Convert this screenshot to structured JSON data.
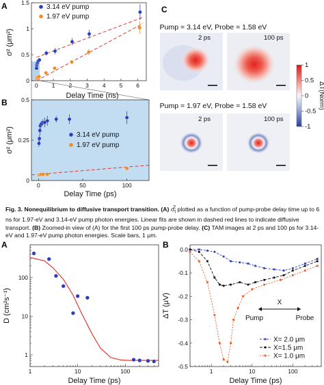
{
  "figure3": {
    "panel_labels": {
      "a": "A",
      "b": "B",
      "c": "C"
    },
    "caption": {
      "title": "Fig. 3. Nonequilibrium to diffusive transport transition.",
      "part_a_label": "(A)",
      "part_a_text_pre": "σ",
      "part_a_sub": "t",
      "part_a_sup": "2",
      "part_a_text": "plotted as a function of pump-probe delay time up to 6 ns for 1.97-eV and 3.14-eV pump photon energies. Linear fits are shown in dashed red lines to indicate diffusive transport.",
      "part_b_label": "(B)",
      "part_b_text": "Zoomed-in view of (A) for the first 100 ps pump-probe delay.",
      "part_c_label": "(C)",
      "part_c_text": "TAM images at 2 ps and 100 ps for 3.14-eV and 1.97-eV pump photon energies. Scale bars, 1 μm."
    },
    "panel_c": {
      "row1_title": "Pump = 3.14 eV, Probe = 1.58 eV",
      "row2_title": "Pump = 1.97 eV, Probe = 1.58 eV",
      "time_2ps": "2 ps",
      "time_100ps": "100 ps",
      "colorbar_label": "ΔT(Norm)",
      "colorbar_ticks": [
        "1",
        "0.5",
        "0",
        "-0.5",
        "-1"
      ],
      "colors": {
        "positive": "#e8302e",
        "negative": "#3b4fa0",
        "zero": "#f2f2f4"
      }
    }
  },
  "figure4": {
    "panel_labels": {
      "a": "A",
      "b": "B"
    },
    "inset_text": {
      "x_label": "X",
      "pump": "Pump",
      "probe": "Probe"
    }
  },
  "chart_data": [
    {
      "id": "fig3a",
      "type": "scatter",
      "xlabel": "Delay Time (ns)",
      "ylabel": "σ² (μm²)",
      "xlim": [
        -0.3,
        6.5
      ],
      "ylim": [
        0,
        1.5
      ],
      "xticks": [
        "0",
        "1",
        "2",
        "3",
        "4",
        "5",
        "6"
      ],
      "yticks": [
        "0",
        "0.5",
        "1",
        "1.5"
      ],
      "legend_position": "top-left",
      "series": [
        {
          "name": "3.14 eV pump",
          "color": "#2b3fb8",
          "x": [
            0.002,
            0.005,
            0.01,
            0.02,
            0.03,
            0.05,
            0.1,
            0.5,
            1,
            2,
            3,
            6
          ],
          "y": [
            0.24,
            0.3,
            0.33,
            0.34,
            0.36,
            0.38,
            0.4,
            0.53,
            0.57,
            0.75,
            0.9,
            1.32
          ],
          "err": [
            0.02,
            0.02,
            0.02,
            0.02,
            0.02,
            0.02,
            0.03,
            0.05,
            0.06,
            0.07,
            0.08,
            0.15
          ]
        },
        {
          "name": "1.97 eV pump",
          "color": "#f08a24",
          "x": [
            0.002,
            0.005,
            0.01,
            0.05,
            0.1,
            0.5,
            1,
            2,
            3,
            6
          ],
          "y": [
            0.04,
            0.05,
            0.06,
            0.07,
            0.08,
            0.15,
            0.24,
            0.36,
            0.55,
            1.02
          ],
          "err": [
            0.01,
            0.01,
            0.01,
            0.01,
            0.01,
            0.02,
            0.03,
            0.04,
            0.06,
            0.12
          ]
        }
      ],
      "fits": [
        {
          "x": [
            0,
            6.3
          ],
          "y": [
            0.45,
            1.22
          ]
        },
        {
          "x": [
            0,
            6.3
          ],
          "y": [
            0.0,
            1.1
          ]
        }
      ]
    },
    {
      "id": "fig3b",
      "type": "scatter",
      "xlabel": "Delay Time (ps)",
      "ylabel": "σ² (μm²)",
      "xlim": [
        -8,
        125
      ],
      "ylim": [
        0,
        0.5
      ],
      "xticks": [
        "0",
        "50",
        "100"
      ],
      "yticks": [
        "0",
        "0.25",
        "0.5"
      ],
      "legend_position": "center-right",
      "series": [
        {
          "name": "3.14 eV pump",
          "color": "#2b3fb8",
          "x": [
            0.5,
            1,
            1.5,
            2,
            3,
            5,
            7,
            10,
            20,
            35,
            100
          ],
          "y": [
            0.23,
            0.26,
            0.31,
            0.34,
            0.35,
            0.36,
            0.36,
            0.37,
            0.38,
            0.38,
            0.39
          ],
          "err": [
            0.02,
            0.02,
            0.03,
            0.02,
            0.02,
            0.02,
            0.03,
            0.03,
            0.02,
            0.03,
            0.04
          ]
        },
        {
          "name": "1.97 eV pump",
          "color": "#f08a24",
          "x": [
            0.5,
            1,
            2,
            3,
            5,
            10,
            100
          ],
          "y": [
            0.035,
            0.035,
            0.037,
            0.038,
            0.038,
            0.039,
            0.075
          ],
          "err": [
            0.004,
            0.004,
            0.004,
            0.004,
            0.004,
            0.004,
            0.006
          ]
        }
      ],
      "fits": [
        {
          "x": [
            -8,
            125
          ],
          "y": [
            0.035,
            0.095
          ]
        }
      ]
    },
    {
      "id": "fig4a",
      "type": "scatter",
      "xlabel": "Delay Time (ps)",
      "ylabel": "D (cm²s⁻¹)",
      "xscale": "log",
      "yscale": "log",
      "xlim": [
        1,
        500
      ],
      "ylim": [
        0.5,
        700
      ],
      "xticks": [
        "1",
        "10",
        "100"
      ],
      "yticks": [
        "1",
        "10",
        "100"
      ],
      "series": [
        {
          "name": "",
          "color": "#2b3fb8",
          "x": [
            1.2,
            2.5,
            3.5,
            5,
            8,
            10,
            16,
            150,
            200,
            300,
            400
          ],
          "y": [
            420,
            300,
            110,
            60,
            12,
            33,
            30,
            0.75,
            0.72,
            0.7,
            0.68
          ]
        }
      ],
      "curve": {
        "color": "#e03a2e",
        "x": [
          1,
          2,
          3,
          5,
          8,
          12,
          20,
          30,
          50,
          80,
          120,
          200,
          300,
          500
        ],
        "y": [
          330,
          270,
          180,
          90,
          35,
          12,
          3.5,
          1.5,
          0.85,
          0.74,
          0.72,
          0.72,
          0.72,
          0.72
        ]
      }
    },
    {
      "id": "fig4b",
      "type": "line",
      "xlabel": "Delay Time (ps)",
      "ylabel": "ΔT (μV)",
      "xscale": "log",
      "xlim": [
        0.3,
        500
      ],
      "ylim": [
        -0.5,
        0.02
      ],
      "xticks": [
        "1",
        "10",
        "100"
      ],
      "yticks": [
        "0.0",
        "-0.1",
        "-0.2",
        "-0.3",
        "-0.4",
        "-0.5"
      ],
      "legend_position": "bottom-right",
      "series": [
        {
          "name": "X= 2.0 μm",
          "color": "#2b3fb8",
          "x": [
            0.3,
            0.5,
            0.8,
            1.2,
            2,
            3,
            5,
            8,
            12,
            20,
            35,
            60,
            100,
            200,
            400
          ],
          "y": [
            0.0,
            0.0,
            -0.005,
            -0.01,
            -0.03,
            -0.05,
            -0.055,
            -0.06,
            -0.07,
            -0.08,
            -0.085,
            -0.09,
            -0.08,
            -0.06,
            -0.04
          ]
        },
        {
          "name": "X=1.5 μm",
          "color": "#111111",
          "x": [
            0.3,
            0.5,
            0.8,
            1.2,
            1.6,
            2,
            3,
            5,
            8,
            12,
            20,
            35,
            60,
            100,
            200,
            400
          ],
          "y": [
            0.0,
            -0.01,
            -0.05,
            -0.12,
            -0.15,
            -0.155,
            -0.15,
            -0.14,
            -0.15,
            -0.14,
            -0.13,
            -0.12,
            -0.11,
            -0.09,
            -0.07,
            -0.05
          ]
        },
        {
          "name": "X= 1.0 μm",
          "color": "#f05a22",
          "x": [
            0.3,
            0.5,
            0.8,
            1.2,
            1.6,
            2.0,
            2.5,
            3,
            3.5,
            4.5,
            6,
            10,
            20,
            50,
            100,
            200,
            400
          ],
          "y": [
            -0.01,
            -0.05,
            -0.14,
            -0.28,
            -0.4,
            -0.47,
            -0.48,
            -0.4,
            -0.3,
            -0.25,
            -0.2,
            -0.17,
            -0.15,
            -0.13,
            -0.11,
            -0.09,
            -0.07
          ]
        }
      ]
    }
  ]
}
